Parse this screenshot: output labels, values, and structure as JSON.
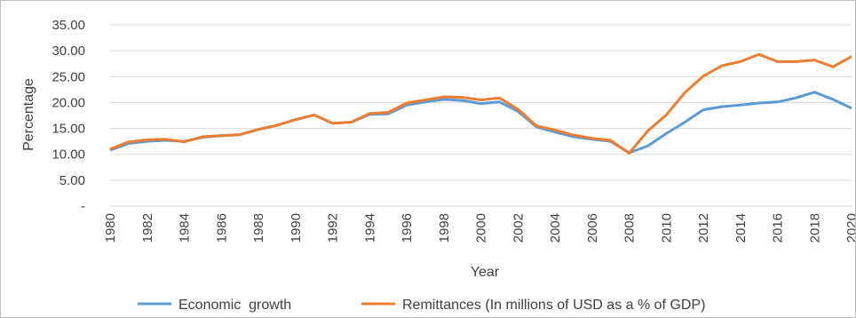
{
  "chart_data": {
    "type": "line",
    "title": "",
    "xlabel": "Year",
    "ylabel": "Percentage",
    "ylim": [
      0,
      35
    ],
    "y_ticks": [
      "-",
      "5.00",
      "10.00",
      "15.00",
      "20.00",
      "25.00",
      "30.00",
      "35.00"
    ],
    "x_tick_labels": [
      "1980",
      "1982",
      "1984",
      "1986",
      "1988",
      "1990",
      "1992",
      "1994",
      "1996",
      "1998",
      "2000",
      "2002",
      "2004",
      "2006",
      "2008",
      "2010",
      "2012",
      "2014",
      "2016",
      "2018",
      "2020"
    ],
    "grid": "horizontal",
    "legend_position": "bottom",
    "x": [
      1980,
      1981,
      1982,
      1983,
      1984,
      1985,
      1986,
      1987,
      1988,
      1989,
      1990,
      1991,
      1992,
      1993,
      1994,
      1995,
      1996,
      1997,
      1998,
      1999,
      2000,
      2001,
      2002,
      2003,
      2004,
      2005,
      2006,
      2007,
      2008,
      2009,
      2010,
      2011,
      2012,
      2013,
      2014,
      2015,
      2016,
      2017,
      2018,
      2019,
      2020
    ],
    "series": [
      {
        "name": "Economic  growth",
        "color": "#5B9BD5",
        "values": [
          10.8,
          12.1,
          12.5,
          12.7,
          12.5,
          13.3,
          13.6,
          13.8,
          14.8,
          15.6,
          16.7,
          17.6,
          16.0,
          16.2,
          17.7,
          17.8,
          19.5,
          20.1,
          20.6,
          20.4,
          19.8,
          20.1,
          18.3,
          15.3,
          14.3,
          13.4,
          12.9,
          12.5,
          10.3,
          11.6,
          14.0,
          16.2,
          18.6,
          19.2,
          19.5,
          19.9,
          20.1,
          20.9,
          22.0,
          20.6,
          18.9
        ]
      },
      {
        "name": "Remittances (In millions of USD as a % of GDP)",
        "color": "#ED7D31",
        "values": [
          11.0,
          12.4,
          12.8,
          12.9,
          12.4,
          13.4,
          13.6,
          13.8,
          14.8,
          15.6,
          16.7,
          17.6,
          16.0,
          16.2,
          17.9,
          18.1,
          19.9,
          20.5,
          21.1,
          21.0,
          20.5,
          20.9,
          18.7,
          15.5,
          14.7,
          13.7,
          13.1,
          12.7,
          10.2,
          14.5,
          17.6,
          21.9,
          25.1,
          27.1,
          27.9,
          29.3,
          27.9,
          27.9,
          28.2,
          26.9,
          28.9
        ]
      }
    ]
  }
}
